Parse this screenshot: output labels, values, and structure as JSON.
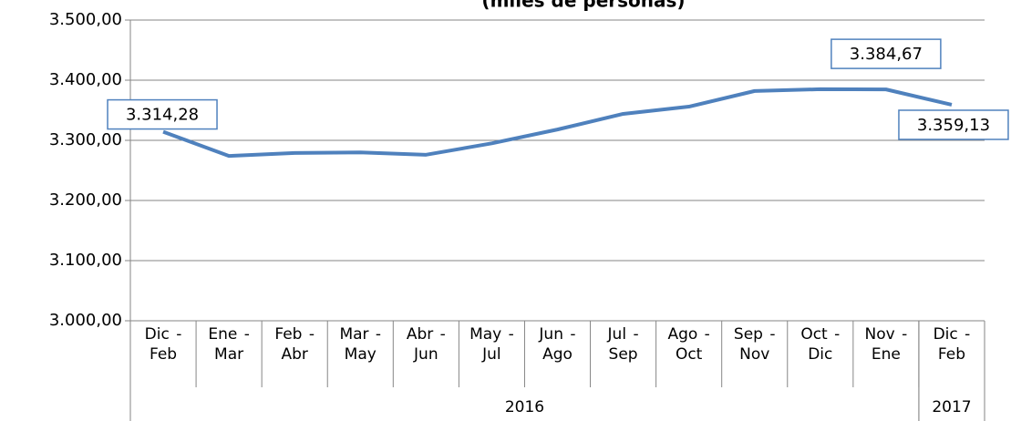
{
  "chart_data": {
    "type": "line",
    "title": "(miles de personas)",
    "categories": [
      "Dic - Feb",
      "Ene - Mar",
      "Feb - Abr",
      "Mar - May",
      "Abr - Jun",
      "May - Jul",
      "Jun - Ago",
      "Jul - Sep",
      "Ago - Oct",
      "Sep - Nov",
      "Oct - Dic",
      "Nov - Ene",
      "Dic - Feb"
    ],
    "groups": [
      {
        "label": "2016",
        "size": 12
      },
      {
        "label": "2017",
        "size": 1
      }
    ],
    "series": [
      {
        "color": "#4f81bd",
        "values": [
          3314.28,
          3274,
          3279,
          3280,
          3276,
          3295,
          3318,
          3344,
          3356,
          3382,
          3385,
          3384.67,
          3359.13
        ],
        "value_labels": [
          "3.314,28",
          null,
          null,
          null,
          null,
          null,
          null,
          null,
          null,
          null,
          null,
          "3.384,67",
          "3.359,13"
        ]
      }
    ],
    "ylim": [
      3000,
      3500
    ],
    "yticks": [
      {
        "value": 3000,
        "label": "3.000,00"
      },
      {
        "value": 3100,
        "label": "3.100,00"
      },
      {
        "value": 3200,
        "label": "3.200,00"
      },
      {
        "value": 3300,
        "label": "3.300,00"
      },
      {
        "value": 3400,
        "label": "3.400,00"
      },
      {
        "value": 3500,
        "label": "3.500,00"
      }
    ],
    "grid": true
  }
}
